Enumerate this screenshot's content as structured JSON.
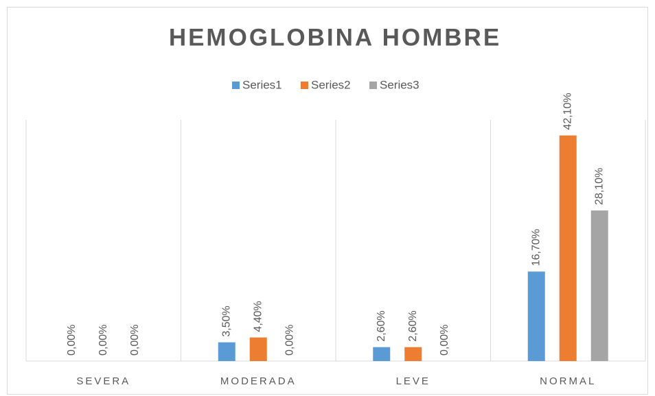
{
  "chart_data": {
    "type": "bar",
    "title": "HEMOGLOBINA HOMBRE",
    "categories": [
      "SEVERA",
      "MODERADA",
      "LEVE",
      "NORMAL"
    ],
    "series": [
      {
        "name": "Series1",
        "color": "#5b9bd5",
        "values": [
          0,
          3.5,
          2.6,
          16.7
        ],
        "value_labels": [
          "0,00%",
          "3,50%",
          "2,60%",
          "16,70%"
        ]
      },
      {
        "name": "Series2",
        "color": "#ed7d31",
        "values": [
          0,
          4.4,
          2.6,
          42.1
        ],
        "value_labels": [
          "0,00%",
          "4,40%",
          "2,60%",
          "42,10%"
        ]
      },
      {
        "name": "Series3",
        "color": "#a5a5a5",
        "values": [
          0,
          0,
          0,
          28.1
        ],
        "value_labels": [
          "0,00%",
          "0,00%",
          "0,00%",
          "28,10%"
        ]
      }
    ],
    "ylim": [
      0,
      45
    ],
    "legend": "top"
  }
}
